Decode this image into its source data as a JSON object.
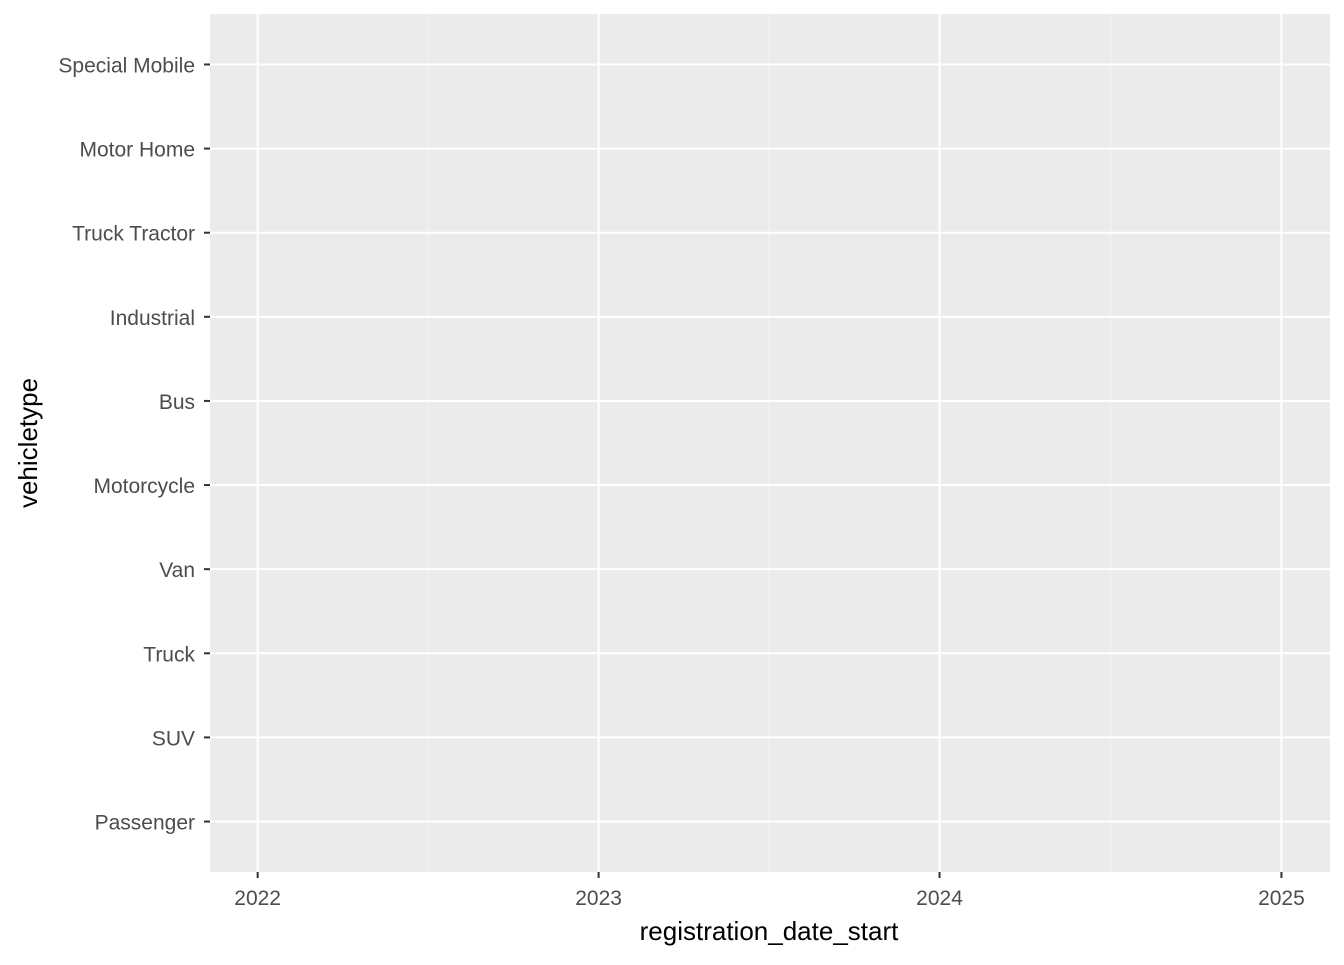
{
  "chart_data": {
    "type": "scatter",
    "title": "",
    "xlabel": "registration_date_start",
    "ylabel": "vehicletype",
    "x_axis_type": "date",
    "x_ticks": [
      "2022",
      "2023",
      "2024",
      "2025"
    ],
    "xlim": [
      "2021-11-11",
      "2025-02-22"
    ],
    "y_categories": [
      "Passenger",
      "SUV",
      "Truck",
      "Van",
      "Motorcycle",
      "Bus",
      "Industrial",
      "Truck Tractor",
      "Motor Home",
      "Special Mobile"
    ],
    "series": [],
    "grid": true,
    "legend": "none",
    "colors": {
      "panel_background": "#EBEBEB",
      "grid_major": "#FFFFFF",
      "grid_minor": "#F5F5F5",
      "tick_text": "#4D4D4D",
      "tick_mark": "#333333",
      "axis_title": "#000000"
    }
  }
}
